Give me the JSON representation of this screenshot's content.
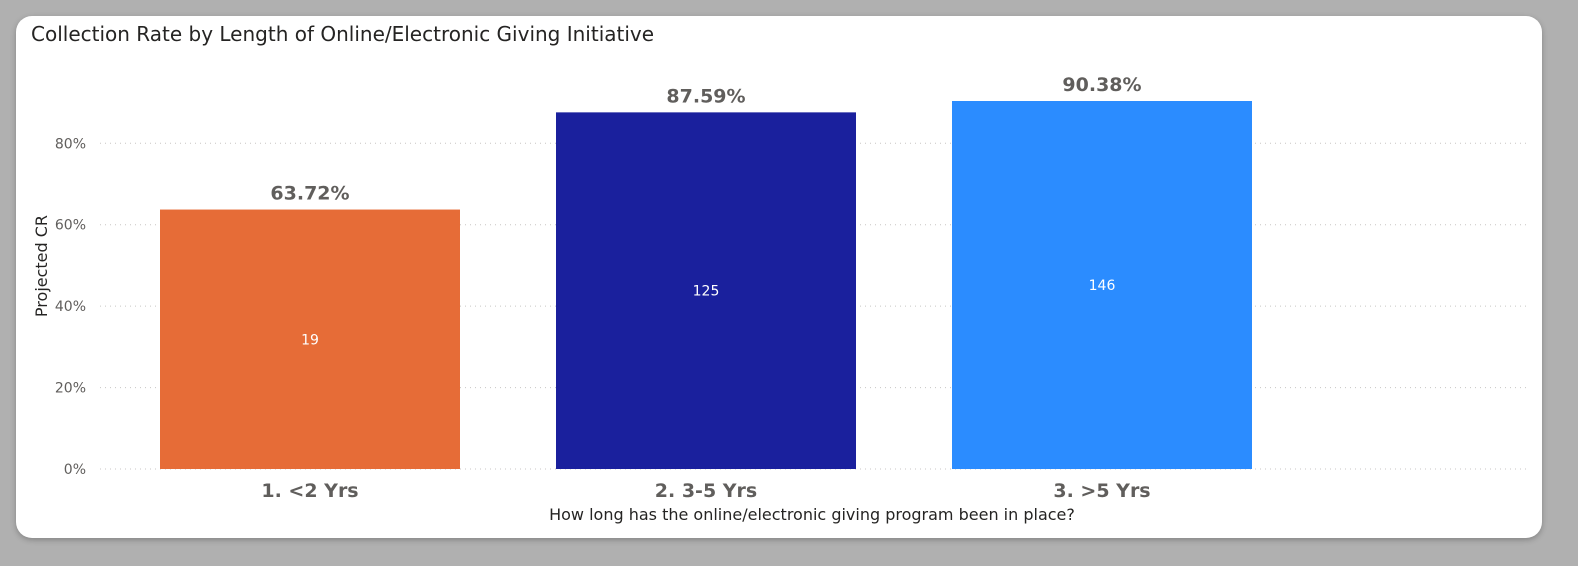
{
  "chart_data": {
    "type": "bar",
    "title": "Collection Rate by Length of Online/Electronic Giving Initiative",
    "xlabel": "How long has the online/electronic giving program been in place?",
    "ylabel": "Projected CR",
    "categories": [
      "1. <2 Yrs",
      "2. 3-5 Yrs",
      "3. >5 Yrs"
    ],
    "values": [
      63.72,
      87.59,
      90.38
    ],
    "value_labels": [
      "63.72%",
      "87.59%",
      "90.38%"
    ],
    "inner_labels": [
      "19",
      "125",
      "146"
    ],
    "colors": [
      "#e66c37",
      "#1a209d",
      "#2b8cff"
    ],
    "ylim": [
      0,
      90.38
    ],
    "yticks": [
      0,
      20,
      40,
      60,
      80
    ],
    "ytick_labels": [
      "0%",
      "20%",
      "40%",
      "60%",
      "80%"
    ],
    "grid": true
  }
}
